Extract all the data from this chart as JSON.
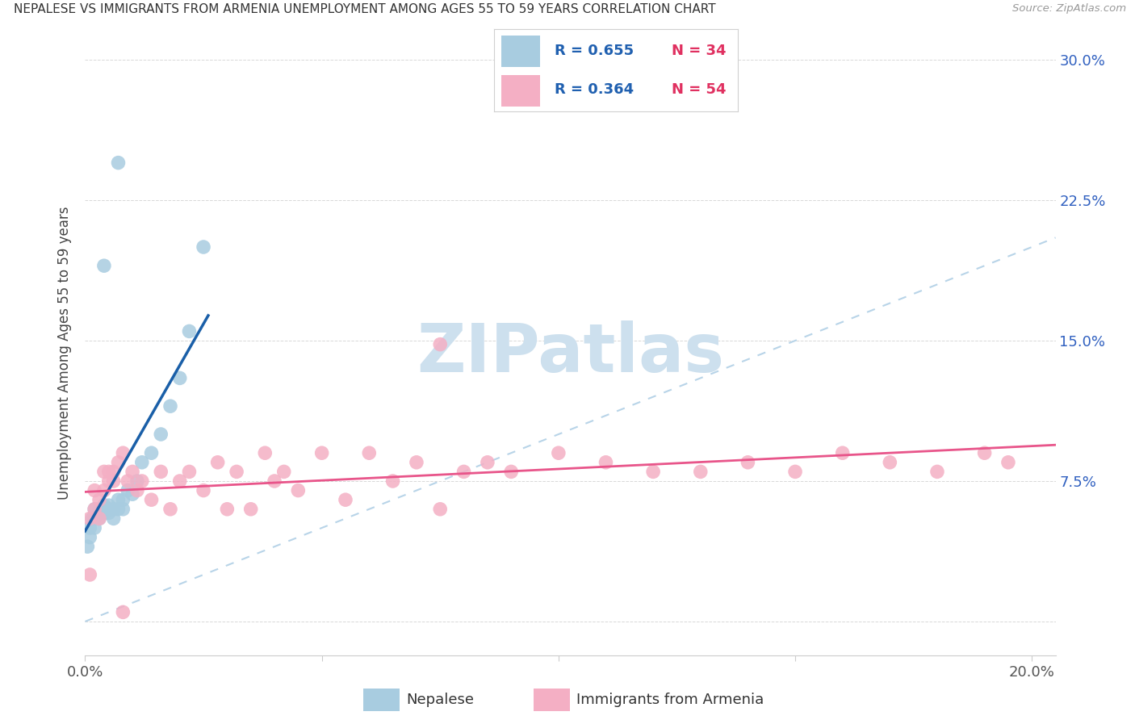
{
  "title": "NEPALESE VS IMMIGRANTS FROM ARMENIA UNEMPLOYMENT AMONG AGES 55 TO 59 YEARS CORRELATION CHART",
  "source": "Source: ZipAtlas.com",
  "ylabel": "Unemployment Among Ages 55 to 59 years",
  "xlim": [
    0.0,
    0.205
  ],
  "ylim": [
    -0.018,
    0.305
  ],
  "xtick_positions": [
    0.0,
    0.05,
    0.1,
    0.15,
    0.2
  ],
  "xticklabels": [
    "0.0%",
    "",
    "",
    "",
    "20.0%"
  ],
  "ytick_positions": [
    0.0,
    0.075,
    0.15,
    0.225,
    0.3
  ],
  "yticklabels_right": [
    "",
    "7.5%",
    "15.0%",
    "22.5%",
    "30.0%"
  ],
  "nepalese_color": "#a8cce0",
  "armenia_color": "#f4afc4",
  "nepalese_line_color": "#1a5fa8",
  "armenia_line_color": "#e8558a",
  "diagonal_color": "#b8d4e8",
  "legend_r_color": "#2060b0",
  "legend_n_color": "#e03060",
  "watermark_color": "#cde0ee",
  "nepalese_x": [
    0.0005,
    0.001,
    0.001,
    0.0015,
    0.002,
    0.002,
    0.002,
    0.003,
    0.003,
    0.003,
    0.004,
    0.004,
    0.004,
    0.005,
    0.005,
    0.005,
    0.006,
    0.006,
    0.007,
    0.007,
    0.008,
    0.008,
    0.009,
    0.01,
    0.011,
    0.012,
    0.014,
    0.016,
    0.018,
    0.02,
    0.022,
    0.025,
    0.004,
    0.007
  ],
  "nepalese_y": [
    0.04,
    0.045,
    0.05,
    0.055,
    0.05,
    0.055,
    0.06,
    0.058,
    0.055,
    0.06,
    0.06,
    0.058,
    0.062,
    0.06,
    0.058,
    0.062,
    0.06,
    0.055,
    0.065,
    0.06,
    0.065,
    0.06,
    0.07,
    0.068,
    0.075,
    0.085,
    0.09,
    0.1,
    0.115,
    0.13,
    0.155,
    0.2,
    0.19,
    0.245
  ],
  "armenia_x": [
    0.001,
    0.001,
    0.002,
    0.002,
    0.003,
    0.003,
    0.004,
    0.004,
    0.005,
    0.005,
    0.006,
    0.006,
    0.007,
    0.008,
    0.009,
    0.01,
    0.011,
    0.012,
    0.014,
    0.016,
    0.018,
    0.02,
    0.022,
    0.025,
    0.028,
    0.03,
    0.032,
    0.035,
    0.038,
    0.04,
    0.042,
    0.045,
    0.05,
    0.055,
    0.06,
    0.065,
    0.07,
    0.075,
    0.08,
    0.085,
    0.09,
    0.1,
    0.11,
    0.12,
    0.13,
    0.14,
    0.15,
    0.16,
    0.17,
    0.18,
    0.19,
    0.195,
    0.008,
    0.075
  ],
  "armenia_y": [
    0.055,
    0.025,
    0.06,
    0.07,
    0.055,
    0.065,
    0.08,
    0.07,
    0.075,
    0.08,
    0.075,
    0.08,
    0.085,
    0.09,
    0.075,
    0.08,
    0.07,
    0.075,
    0.065,
    0.08,
    0.06,
    0.075,
    0.08,
    0.07,
    0.085,
    0.06,
    0.08,
    0.06,
    0.09,
    0.075,
    0.08,
    0.07,
    0.09,
    0.065,
    0.09,
    0.075,
    0.085,
    0.06,
    0.08,
    0.085,
    0.08,
    0.09,
    0.085,
    0.08,
    0.08,
    0.085,
    0.08,
    0.09,
    0.085,
    0.08,
    0.09,
    0.085,
    0.005,
    0.148
  ]
}
